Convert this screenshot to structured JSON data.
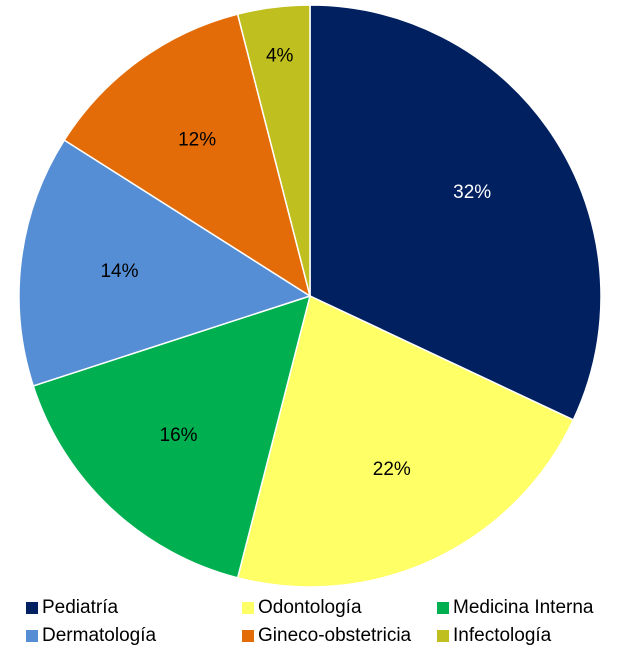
{
  "chart_data": {
    "type": "pie",
    "categories": [
      "Pediatría",
      "Odontología",
      "Medicina Interna",
      "Dermatología",
      "Gineco-obstetricia",
      "Infectología"
    ],
    "values": [
      32,
      22,
      16,
      14,
      12,
      4
    ],
    "value_labels": [
      "32%",
      "22%",
      "16%",
      "14%",
      "12%",
      "4%"
    ],
    "colors": [
      "#002060",
      "#ffff66",
      "#00b050",
      "#558ed5",
      "#e36c09",
      "#bfbf1f"
    ],
    "legend": "bottom"
  }
}
